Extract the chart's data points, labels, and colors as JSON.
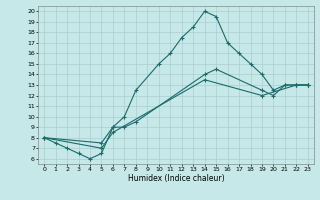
{
  "title": "",
  "xlabel": "Humidex (Indice chaleur)",
  "ylabel": "",
  "xlim": [
    -0.5,
    23.5
  ],
  "ylim": [
    5.5,
    20.5
  ],
  "xticks": [
    0,
    1,
    2,
    3,
    4,
    5,
    6,
    7,
    8,
    9,
    10,
    11,
    12,
    13,
    14,
    15,
    16,
    17,
    18,
    19,
    20,
    21,
    22,
    23
  ],
  "yticks": [
    6,
    7,
    8,
    9,
    10,
    11,
    12,
    13,
    14,
    15,
    16,
    17,
    18,
    19,
    20
  ],
  "background_color": "#c6e8e8",
  "grid_color": "#aacfcf",
  "line_color": "#1a6b6b",
  "series": [
    {
      "x": [
        0,
        1,
        2,
        3,
        4,
        5,
        6,
        7,
        8,
        10,
        11,
        12,
        13,
        14,
        15,
        16,
        17,
        18,
        19,
        20,
        21,
        22,
        23
      ],
      "y": [
        8.0,
        7.5,
        7.0,
        6.5,
        6.0,
        6.5,
        9.0,
        10.0,
        12.5,
        15.0,
        16.0,
        17.5,
        18.5,
        20.0,
        19.5,
        17.0,
        16.0,
        15.0,
        14.0,
        12.5,
        13.0,
        13.0,
        13.0
      ]
    },
    {
      "x": [
        0,
        5,
        6,
        7,
        8,
        14,
        15,
        19,
        20,
        21,
        22,
        23
      ],
      "y": [
        8.0,
        7.5,
        9.0,
        9.0,
        9.5,
        14.0,
        14.5,
        12.5,
        12.0,
        13.0,
        13.0,
        13.0
      ]
    },
    {
      "x": [
        0,
        5,
        6,
        14,
        19,
        22,
        23
      ],
      "y": [
        8.0,
        7.0,
        8.5,
        13.5,
        12.0,
        13.0,
        13.0
      ]
    }
  ]
}
